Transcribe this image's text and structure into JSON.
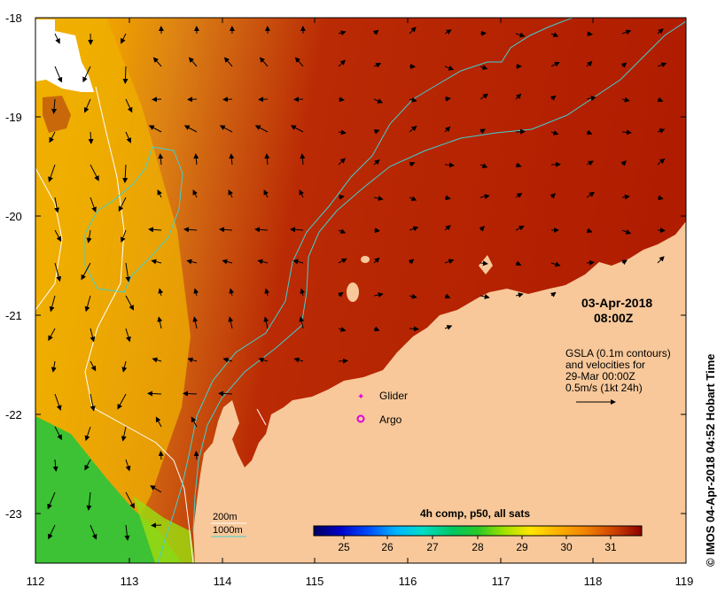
{
  "map": {
    "date_label": "03-Apr-2018",
    "time_label": "08:00Z",
    "gsla_note": [
      "GSLA (0.1m contours)",
      "and velocities for",
      "29-Mar 00:00Z",
      "0.5m/s (1kt 24h)"
    ],
    "legend_glider": "Glider",
    "legend_argo": "Argo",
    "legend_200m": "200m",
    "legend_1000m": "1000m",
    "colorbar_title": "4h comp, p50, all sats",
    "colorbar_ticks": [
      "25",
      "26",
      "27",
      "28",
      "29",
      "30",
      "31"
    ],
    "colorbar_colors": [
      "#000060",
      "#0000c8",
      "#0050ff",
      "#00b4ff",
      "#00dcc8",
      "#00c864",
      "#28c828",
      "#a0e100",
      "#ffe600",
      "#ffb400",
      "#f08200",
      "#d24600",
      "#b41400",
      "#8c0000"
    ],
    "credit": "© IMOS 04-Apr-2018 04:52 Hobart Time",
    "x_ticks": [
      "112",
      "113",
      "114",
      "115",
      "116",
      "117",
      "118",
      "119"
    ],
    "y_ticks": [
      "-18",
      "-19",
      "-20",
      "-21",
      "-22",
      "-23"
    ],
    "colors": {
      "land": "#f8c89a",
      "warm_sea": "#b82000",
      "mid_sea": "#d46a10",
      "cool_sea": "#f0b000",
      "coldest_sea": "#38c030",
      "contour_200m": "#ffffff",
      "contour_1000m": "#40d0d0",
      "argo": "#e000e0"
    }
  }
}
